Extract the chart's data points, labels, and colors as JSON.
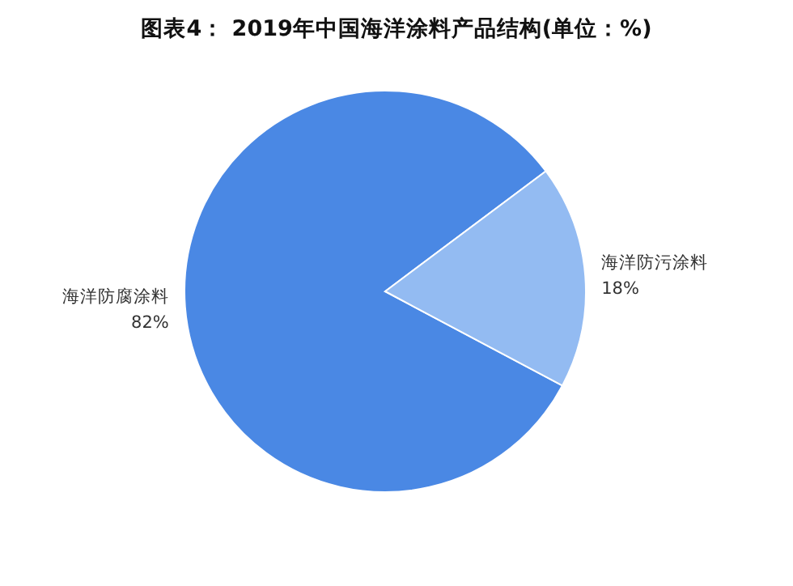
{
  "chart_data": {
    "type": "pie",
    "title": "图表4： 2019年中国海洋涂料产品结构(单位：%)",
    "categories": [
      "海洋防腐涂料",
      "海洋防污涂料"
    ],
    "values": [
      82,
      18
    ],
    "colors": [
      "#4a88e4",
      "#93bbf2"
    ],
    "value_labels": [
      "82%",
      "18%"
    ]
  }
}
